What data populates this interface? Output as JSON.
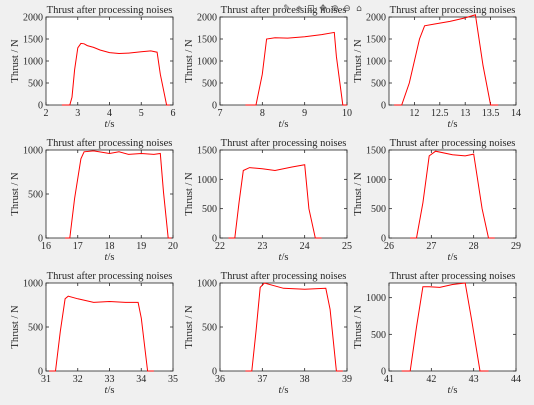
{
  "toolbar": {
    "icons": [
      "brush-icon",
      "data-tips-icon",
      "save-icon",
      "pan-icon",
      "zoom-in-icon",
      "zoom-out-icon",
      "home-icon"
    ],
    "glyphs": [
      "✎",
      "⌖",
      "⊡",
      "✥",
      "⊕",
      "⊖",
      "⌂"
    ]
  },
  "chart_data": [
    {
      "type": "line",
      "title": "Thrust after processing noises",
      "xlabel": "t/s",
      "ylabel": "Thrust / N",
      "xlim": [
        2,
        6
      ],
      "ylim": [
        0,
        2000
      ],
      "xticks": [
        2,
        3,
        4,
        5,
        6
      ],
      "yticks": [
        0,
        500,
        1000,
        1500,
        2000
      ],
      "xtick_labels": [
        "2",
        "3",
        "4",
        "5",
        "6"
      ],
      "ytick_labels": [
        "0",
        "500",
        "1000",
        "1500",
        "2000"
      ],
      "series": [
        {
          "color": "#ff0000",
          "x": [
            2.5,
            2.75,
            2.82,
            2.9,
            3.0,
            3.1,
            3.2,
            3.3,
            3.5,
            3.7,
            4.0,
            4.3,
            4.6,
            5.0,
            5.3,
            5.5,
            5.6,
            5.8,
            5.9
          ],
          "y": [
            0,
            0,
            180,
            800,
            1300,
            1400,
            1390,
            1350,
            1310,
            1250,
            1190,
            1170,
            1180,
            1210,
            1230,
            1200,
            700,
            0,
            0
          ]
        }
      ]
    },
    {
      "type": "line",
      "title": "Thrust after processing noises",
      "xlabel": "t/s",
      "ylabel": "Thrust / N",
      "xlim": [
        7,
        10
      ],
      "ylim": [
        0,
        2000
      ],
      "xticks": [
        7,
        8,
        9,
        10
      ],
      "yticks": [
        0,
        500,
        1000,
        1500,
        2000
      ],
      "xtick_labels": [
        "7",
        "8",
        "9",
        "10"
      ],
      "ytick_labels": [
        "0",
        "500",
        "1000",
        "1500",
        "2000"
      ],
      "series": [
        {
          "color": "#ff0000",
          "x": [
            7.6,
            7.85,
            8.0,
            8.1,
            8.3,
            8.6,
            9.0,
            9.4,
            9.7,
            9.75,
            9.9,
            10.0
          ],
          "y": [
            0,
            0,
            700,
            1500,
            1530,
            1520,
            1550,
            1600,
            1650,
            1100,
            0,
            0
          ]
        }
      ]
    },
    {
      "type": "line",
      "title": "Thrust after processing noises",
      "xlabel": "t/s",
      "ylabel": "Thrust / N",
      "xlim": [
        11.5,
        14
      ],
      "ylim": [
        0,
        2000
      ],
      "xticks": [
        12,
        12.5,
        13,
        13.5,
        14
      ],
      "yticks": [
        0,
        500,
        1000,
        1500,
        2000
      ],
      "xtick_labels": [
        "12",
        "12.5",
        "13",
        "13.5",
        "14"
      ],
      "ytick_labels": [
        "0",
        "500",
        "1000",
        "1500",
        "2000"
      ],
      "series": [
        {
          "color": "#ff0000",
          "x": [
            11.6,
            11.75,
            11.9,
            12.1,
            12.2,
            12.4,
            12.7,
            13.0,
            13.2,
            13.35,
            13.5,
            13.65
          ],
          "y": [
            0,
            0,
            500,
            1500,
            1800,
            1840,
            1900,
            1980,
            2050,
            900,
            0,
            0
          ]
        }
      ]
    },
    {
      "type": "line",
      "title": "Thrust after processing noises",
      "xlabel": "t/s",
      "ylabel": "Thrust / N",
      "xlim": [
        16,
        20
      ],
      "ylim": [
        0,
        1000
      ],
      "xticks": [
        16,
        17,
        18,
        19,
        20
      ],
      "yticks": [
        0,
        500,
        1000
      ],
      "xtick_labels": [
        "16",
        "17",
        "18",
        "19",
        "20"
      ],
      "ytick_labels": [
        "0",
        "500",
        "1000"
      ],
      "series": [
        {
          "color": "#ff0000",
          "x": [
            16.6,
            16.75,
            16.9,
            17.1,
            17.2,
            17.5,
            18.0,
            18.3,
            18.6,
            19.0,
            19.4,
            19.6,
            19.7,
            19.85,
            19.95
          ],
          "y": [
            0,
            0,
            450,
            900,
            980,
            990,
            960,
            980,
            950,
            960,
            950,
            960,
            520,
            0,
            0
          ]
        }
      ]
    },
    {
      "type": "line",
      "title": "Thrust after processing noises",
      "xlabel": "t/s",
      "ylabel": "Thrust / N",
      "xlim": [
        22,
        25
      ],
      "ylim": [
        0,
        1500
      ],
      "xticks": [
        22,
        23,
        24,
        25
      ],
      "yticks": [
        0,
        500,
        1000,
        1500
      ],
      "xtick_labels": [
        "22",
        "23",
        "24",
        "25"
      ],
      "ytick_labels": [
        "0",
        "500",
        "1000",
        "1500"
      ],
      "series": [
        {
          "color": "#ff0000",
          "x": [
            22.2,
            22.35,
            22.45,
            22.55,
            22.7,
            23.0,
            23.3,
            23.7,
            24.0,
            24.1,
            24.25,
            24.4
          ],
          "y": [
            0,
            0,
            600,
            1150,
            1200,
            1180,
            1150,
            1210,
            1250,
            500,
            0,
            0
          ]
        }
      ]
    },
    {
      "type": "line",
      "title": "Thrust after processing noises",
      "xlabel": "t/s",
      "ylabel": "Thrust / N",
      "xlim": [
        26,
        29
      ],
      "ylim": [
        0,
        1500
      ],
      "xticks": [
        26,
        27,
        28,
        29
      ],
      "yticks": [
        0,
        500,
        1000,
        1500
      ],
      "xtick_labels": [
        "26",
        "27",
        "28",
        "29"
      ],
      "ytick_labels": [
        "0",
        "500",
        "1000",
        "1500"
      ],
      "series": [
        {
          "color": "#ff0000",
          "x": [
            26.5,
            26.65,
            26.8,
            26.95,
            27.1,
            27.5,
            27.8,
            28.0,
            28.2,
            28.35,
            28.5
          ],
          "y": [
            0,
            0,
            600,
            1400,
            1480,
            1420,
            1400,
            1430,
            500,
            0,
            0
          ]
        }
      ]
    },
    {
      "type": "line",
      "title": "Thrust after processing noises",
      "xlabel": "t/s",
      "ylabel": "Thrust / N",
      "xlim": [
        31,
        35
      ],
      "ylim": [
        0,
        1000
      ],
      "xticks": [
        31,
        32,
        33,
        34,
        35
      ],
      "yticks": [
        0,
        500,
        1000
      ],
      "xtick_labels": [
        "31",
        "32",
        "33",
        "34",
        "35"
      ],
      "ytick_labels": [
        "0",
        "500",
        "1000"
      ],
      "series": [
        {
          "color": "#ff0000",
          "x": [
            31.1,
            31.3,
            31.45,
            31.6,
            31.7,
            32.0,
            32.5,
            33.0,
            33.5,
            33.9,
            34.0,
            34.2,
            34.4
          ],
          "y": [
            0,
            0,
            450,
            820,
            850,
            820,
            780,
            790,
            780,
            780,
            600,
            0,
            0
          ]
        }
      ]
    },
    {
      "type": "line",
      "title": "Thrust after processing noises",
      "xlabel": "t/s",
      "ylabel": "Thrust / N",
      "xlim": [
        36,
        39
      ],
      "ylim": [
        0,
        1000
      ],
      "xticks": [
        36,
        37,
        38,
        39
      ],
      "yticks": [
        0,
        500,
        1000
      ],
      "xtick_labels": [
        "36",
        "37",
        "38",
        "39"
      ],
      "ytick_labels": [
        "0",
        "500",
        "1000"
      ],
      "series": [
        {
          "color": "#ff0000",
          "x": [
            36.6,
            36.75,
            36.85,
            36.95,
            37.05,
            37.5,
            38.0,
            38.5,
            38.6,
            38.75,
            38.9
          ],
          "y": [
            0,
            0,
            450,
            950,
            1000,
            940,
            930,
            940,
            700,
            0,
            0
          ]
        }
      ]
    },
    {
      "type": "line",
      "title": "Thrust after processing noises",
      "xlabel": "t/s",
      "ylabel": "Thrust / N",
      "xlim": [
        41,
        44
      ],
      "ylim": [
        0,
        1200
      ],
      "xticks": [
        41,
        42,
        43,
        44
      ],
      "yticks": [
        0,
        500,
        1000
      ],
      "xtick_labels": [
        "41",
        "42",
        "43",
        "44"
      ],
      "ytick_labels": [
        "0",
        "500",
        "1000"
      ],
      "series": [
        {
          "color": "#ff0000",
          "x": [
            41.3,
            41.5,
            41.65,
            41.8,
            41.95,
            42.2,
            42.5,
            42.8,
            42.95,
            43.15,
            43.35
          ],
          "y": [
            0,
            0,
            600,
            1150,
            1150,
            1140,
            1180,
            1200,
            700,
            0,
            0
          ]
        }
      ]
    }
  ]
}
